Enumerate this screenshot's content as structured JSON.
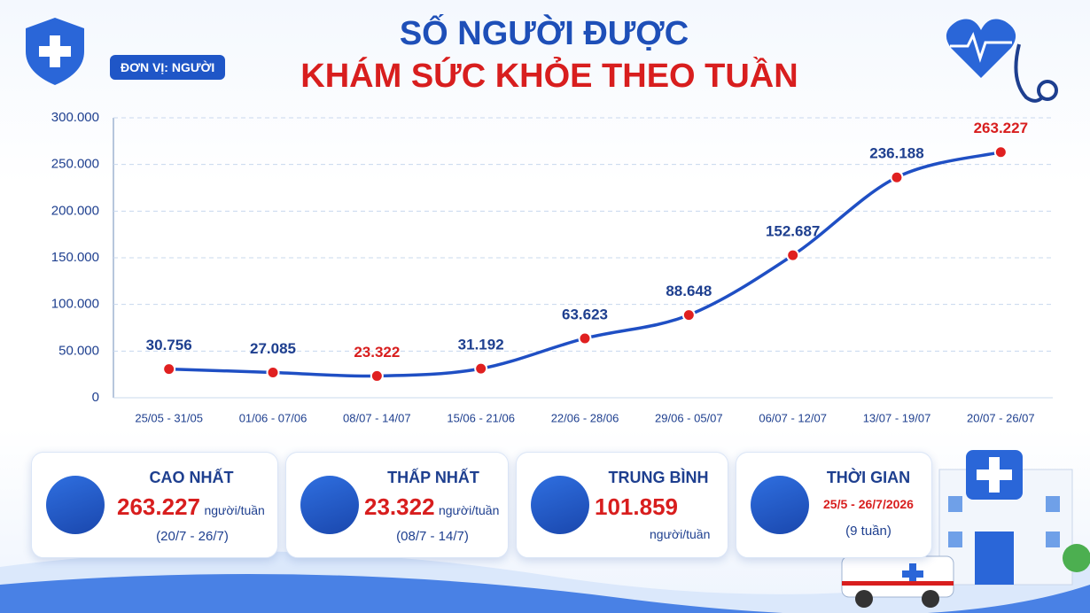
{
  "chart_data": {
    "type": "line",
    "title": [
      "SỐ NGƯỜI ĐƯỢC",
      "KHÁM SỨC KHỎE THEO TUẦN"
    ],
    "unit_label": "ĐƠN VỊ: NGƯỜI",
    "categories": [
      "25/05 - 31/05",
      "01/06 - 07/06",
      "08/07 - 14/07",
      "15/06 - 21/06",
      "22/06 - 28/06",
      "29/06 - 05/07",
      "06/07 - 12/07",
      "13/07 - 19/07",
      "20/07 - 26/07"
    ],
    "values": [
      30756,
      27085,
      23322,
      31192,
      63623,
      88648,
      152687,
      236188,
      263227
    ],
    "value_labels": [
      "30.756",
      "27.085",
      "23.322",
      "31.192",
      "63.623",
      "88.648",
      "152.687",
      "236.188",
      "263.227"
    ],
    "value_label_colors": [
      "#1e3f8f",
      "#1e3f8f",
      "#d81e1e",
      "#1e3f8f",
      "#1e3f8f",
      "#1e3f8f",
      "#1e3f8f",
      "#1e3f8f",
      "#d81e1e"
    ],
    "color": "#1f4fc4",
    "marker_color": "#e02020",
    "ylim": [
      0,
      300000
    ],
    "yticks": [
      0,
      {
        "value": 50000,
        "label": "50.000"
      },
      {
        "value": 100000,
        "label": "100.000"
      },
      {
        "value": 150000,
        "label": "150.000"
      },
      {
        "value": 200000,
        "label": "200.000"
      },
      {
        "value": 250000,
        "label": "250.000"
      },
      {
        "value": 300000,
        "label": "300.000"
      }
    ],
    "grid": true
  },
  "cards": [
    {
      "title": "CAO NHẤT",
      "value": "263.227",
      "unit": "người/tuần",
      "detail": "(20/7 - 26/7)"
    },
    {
      "title": "THẤP NHẤT",
      "value": "23.322",
      "unit": "người/tuần",
      "detail": "(08/7 - 14/7)"
    },
    {
      "title": "TRUNG BÌNH",
      "value": "101.859",
      "unit": "người/tuần"
    },
    {
      "title": "THỜI GIAN",
      "value": "25/5 - 26/7/2026",
      "detail": "(9 tuần)"
    }
  ]
}
